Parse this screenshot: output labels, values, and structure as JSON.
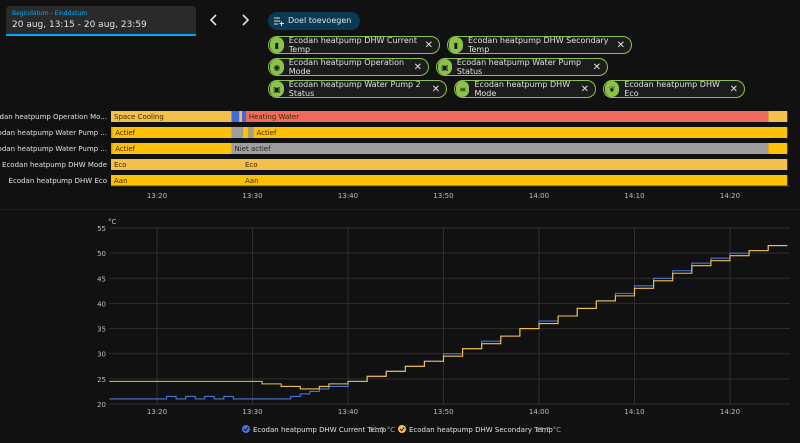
{
  "date_picker": {
    "label": "Begindatum - Einddatum",
    "value": "20 aug, 13:15 - 20 aug, 23:59"
  },
  "nav": {
    "prev_icon": "chevron-left-icon",
    "next_icon": "chevron-right-icon"
  },
  "add_target": {
    "label": "Doel toevoegen"
  },
  "chips": [
    {
      "label": "Ecodan heatpump DHW Current Temp",
      "icon": "thermometer-icon"
    },
    {
      "label": "Ecodan heatpump DHW Secondary Temp",
      "icon": "thermometer-icon"
    },
    {
      "label": "Ecodan heatpump Operation Mode",
      "icon": "eye-icon"
    },
    {
      "label": "Ecodan heatpump Water Pump Status",
      "icon": "pump-icon"
    },
    {
      "label": "Ecodan heatpump Water Pump 2 Status",
      "icon": "pump-icon"
    },
    {
      "label": "Ecodan heatpump DHW Mode",
      "icon": "list-icon"
    },
    {
      "label": "Ecodan heatpump DHW Eco",
      "icon": "leaf-icon"
    }
  ],
  "timeline": {
    "x_ticks": [
      "13:20",
      "13:30",
      "13:40",
      "13:50",
      "14:00",
      "14:10",
      "14:20"
    ],
    "rows": [
      {
        "label": "Ecodan heatpump Operation Mo...",
        "segments": [
          {
            "start": "13:15",
            "end": "13:27.8",
            "state": "Space Cooling",
            "color": "#f4c04d"
          },
          {
            "start": "13:27.8",
            "end": "13:28.6",
            "state": "",
            "color": "#4169e1"
          },
          {
            "start": "13:28.6",
            "end": "13:28.9",
            "state": "",
            "color": "#f4c04d"
          },
          {
            "start": "13:28.9",
            "end": "13:29.3",
            "state": "",
            "color": "#4169e1"
          },
          {
            "start": "13:29.3",
            "end": "14:24",
            "state": "Heating Water",
            "color": "#ef6c5c"
          },
          {
            "start": "14:24",
            "end": "14:26",
            "state": "",
            "color": "#f4c04d"
          }
        ]
      },
      {
        "label": "Ecodan heatpump Water Pump ...",
        "segments": [
          {
            "start": "13:15",
            "end": "13:15.3",
            "state": "",
            "color": "#9e9e9e"
          },
          {
            "start": "13:15.3",
            "end": "13:27.8",
            "state": "Actief",
            "color": "#ffc107"
          },
          {
            "start": "13:27.8",
            "end": "13:29",
            "state": "",
            "color": "#9e9e9e"
          },
          {
            "start": "13:29",
            "end": "13:29.6",
            "state": "",
            "color": "#ffc107"
          },
          {
            "start": "13:29.6",
            "end": "13:30.1",
            "state": "",
            "color": "#9e9e9e"
          },
          {
            "start": "13:30.1",
            "end": "14:26",
            "state": "Actief",
            "color": "#ffc107"
          }
        ]
      },
      {
        "label": "Ecodan heatpump Water Pump ...",
        "segments": [
          {
            "start": "13:15",
            "end": "13:15.3",
            "state": "",
            "color": "#9e9e9e"
          },
          {
            "start": "13:15.3",
            "end": "13:27.8",
            "state": "Actief",
            "color": "#ffc107"
          },
          {
            "start": "13:27.8",
            "end": "14:24",
            "state": "Niet actief",
            "color": "#9e9e9e"
          },
          {
            "start": "14:24",
            "end": "14:26",
            "state": "",
            "color": "#ffc107"
          }
        ]
      },
      {
        "label": "Ecodan heatpump DHW Mode",
        "segments": [
          {
            "start": "13:15",
            "end": "13:28.9",
            "state": "Eco",
            "color": "#f4c04d"
          },
          {
            "start": "13:28.9",
            "end": "14:26",
            "state": "Eco",
            "color": "#f4c04d"
          }
        ]
      },
      {
        "label": "Ecodan heatpump DHW Eco",
        "segments": [
          {
            "start": "13:15",
            "end": "13:28.9",
            "state": "Aan",
            "color": "#ffc107"
          },
          {
            "start": "13:28.9",
            "end": "14:26",
            "state": "Aan",
            "color": "#ffc107"
          }
        ]
      }
    ]
  },
  "chart_data": {
    "type": "line",
    "ylabel": "°C",
    "ylim": [
      20,
      55
    ],
    "y_ticks": [
      20,
      25,
      30,
      35,
      40,
      45,
      50,
      55
    ],
    "x_ticks": [
      "13:20",
      "13:30",
      "13:40",
      "13:50",
      "14:00",
      "14:10",
      "14:20"
    ],
    "xlim": [
      "13:15",
      "14:26"
    ],
    "grid": true,
    "legend": "bottom-center",
    "series": [
      {
        "name": "Ecodan heatpump DHW Current Temp",
        "unit_value": "51,5 °C",
        "color": "#4a73d9",
        "points": [
          [
            "13:15",
            21.0
          ],
          [
            "13:20",
            21.0
          ],
          [
            "13:21",
            21.5
          ],
          [
            "13:22",
            21.0
          ],
          [
            "13:23",
            21.5
          ],
          [
            "13:24",
            21.0
          ],
          [
            "13:25",
            21.5
          ],
          [
            "13:26",
            21.0
          ],
          [
            "13:27",
            21.5
          ],
          [
            "13:28",
            21.0
          ],
          [
            "13:30",
            21.0
          ],
          [
            "13:33",
            21.0
          ],
          [
            "13:34",
            21.5
          ],
          [
            "13:35",
            22.0
          ],
          [
            "13:36",
            22.5
          ],
          [
            "13:37",
            23.0
          ],
          [
            "13:38",
            23.5
          ],
          [
            "13:40",
            24.5
          ],
          [
            "13:42",
            25.5
          ],
          [
            "13:44",
            26.5
          ],
          [
            "13:46",
            27.5
          ],
          [
            "13:48",
            28.5
          ],
          [
            "13:50",
            30.0
          ],
          [
            "13:52",
            31.0
          ],
          [
            "13:54",
            32.5
          ],
          [
            "13:56",
            33.5
          ],
          [
            "13:58",
            35.0
          ],
          [
            "14:00",
            36.5
          ],
          [
            "14:02",
            37.5
          ],
          [
            "14:04",
            39.0
          ],
          [
            "14:06",
            40.5
          ],
          [
            "14:08",
            42.0
          ],
          [
            "14:10",
            43.5
          ],
          [
            "14:12",
            45.0
          ],
          [
            "14:14",
            46.5
          ],
          [
            "14:16",
            48.0
          ],
          [
            "14:18",
            49.0
          ],
          [
            "14:20",
            50.0
          ],
          [
            "14:22",
            50.5
          ],
          [
            "14:24",
            51.5
          ],
          [
            "14:26",
            51.5
          ]
        ]
      },
      {
        "name": "Ecodan heatpump DHW Secondary Temp",
        "unit_value": "51,5 °C",
        "color": "#f4c04d",
        "points": [
          [
            "13:15",
            24.5
          ],
          [
            "13:20",
            24.5
          ],
          [
            "13:25",
            24.5
          ],
          [
            "13:30",
            24.5
          ],
          [
            "13:31",
            24.0
          ],
          [
            "13:33",
            23.5
          ],
          [
            "13:35",
            23.0
          ],
          [
            "13:37",
            23.5
          ],
          [
            "13:38",
            24.0
          ],
          [
            "13:40",
            24.5
          ],
          [
            "13:42",
            25.5
          ],
          [
            "13:44",
            26.5
          ],
          [
            "13:46",
            27.5
          ],
          [
            "13:48",
            28.5
          ],
          [
            "13:50",
            29.5
          ],
          [
            "13:52",
            31.0
          ],
          [
            "13:54",
            32.0
          ],
          [
            "13:56",
            33.5
          ],
          [
            "13:58",
            35.0
          ],
          [
            "14:00",
            36.0
          ],
          [
            "14:02",
            37.5
          ],
          [
            "14:04",
            39.0
          ],
          [
            "14:06",
            40.5
          ],
          [
            "14:08",
            41.5
          ],
          [
            "14:10",
            43.0
          ],
          [
            "14:12",
            44.5
          ],
          [
            "14:14",
            46.0
          ],
          [
            "14:16",
            47.5
          ],
          [
            "14:18",
            48.5
          ],
          [
            "14:20",
            49.5
          ],
          [
            "14:22",
            50.5
          ],
          [
            "14:24",
            51.5
          ],
          [
            "14:26",
            51.5
          ]
        ]
      }
    ]
  }
}
